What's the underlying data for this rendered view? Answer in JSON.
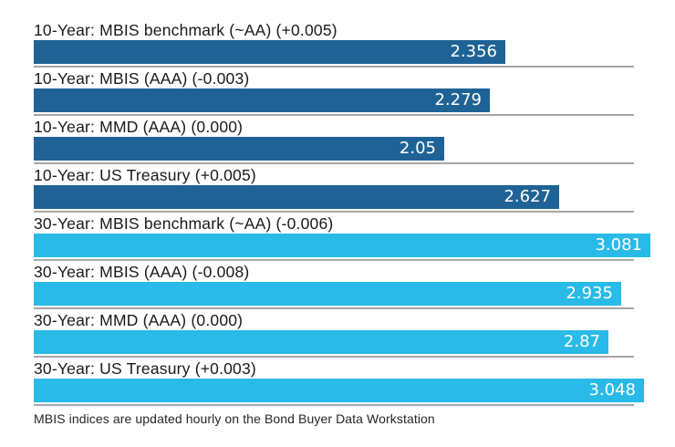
{
  "chart_data": {
    "type": "bar",
    "orientation": "horizontal",
    "title": "",
    "xlabel": "",
    "ylabel": "",
    "xlim": [
      0,
      3.2
    ],
    "grid": false,
    "legend": false,
    "rows": [
      {
        "label": "10-Year: MBIS benchmark (~AA) (+0.005)",
        "value": 2.356,
        "value_label": "2.356",
        "group": "10-year"
      },
      {
        "label": "10-Year: MBIS (AAA) (-0.003)",
        "value": 2.279,
        "value_label": "2.279",
        "group": "10-year"
      },
      {
        "label": "10-Year: MMD (AAA) (0.000)",
        "value": 2.05,
        "value_label": "2.05",
        "group": "10-year"
      },
      {
        "label": "10-Year: US Treasury (+0.005)",
        "value": 2.627,
        "value_label": "2.627",
        "group": "10-year"
      },
      {
        "label": "30-Year: MBIS benchmark (~AA) (-0.006)",
        "value": 3.081,
        "value_label": "3.081",
        "group": "30-year"
      },
      {
        "label": "30-Year: MBIS (AAA) (-0.008)",
        "value": 2.935,
        "value_label": "2.935",
        "group": "30-year"
      },
      {
        "label": "30-Year: MMD (AAA) (0.000)",
        "value": 2.87,
        "value_label": "2.87",
        "group": "30-year"
      },
      {
        "label": "30-Year: US Treasury (+0.003)",
        "value": 3.048,
        "value_label": "3.048",
        "group": "30-year"
      }
    ],
    "colors": {
      "10-year": "#1f6396",
      "30-year": "#29bae7",
      "separator": "#a6a6a6",
      "label_text": "#1a1a1a",
      "value_text": "#ffffff"
    }
  },
  "footer": {
    "note": "MBIS indices are updated hourly on the Bond Buyer Data Workstation"
  }
}
